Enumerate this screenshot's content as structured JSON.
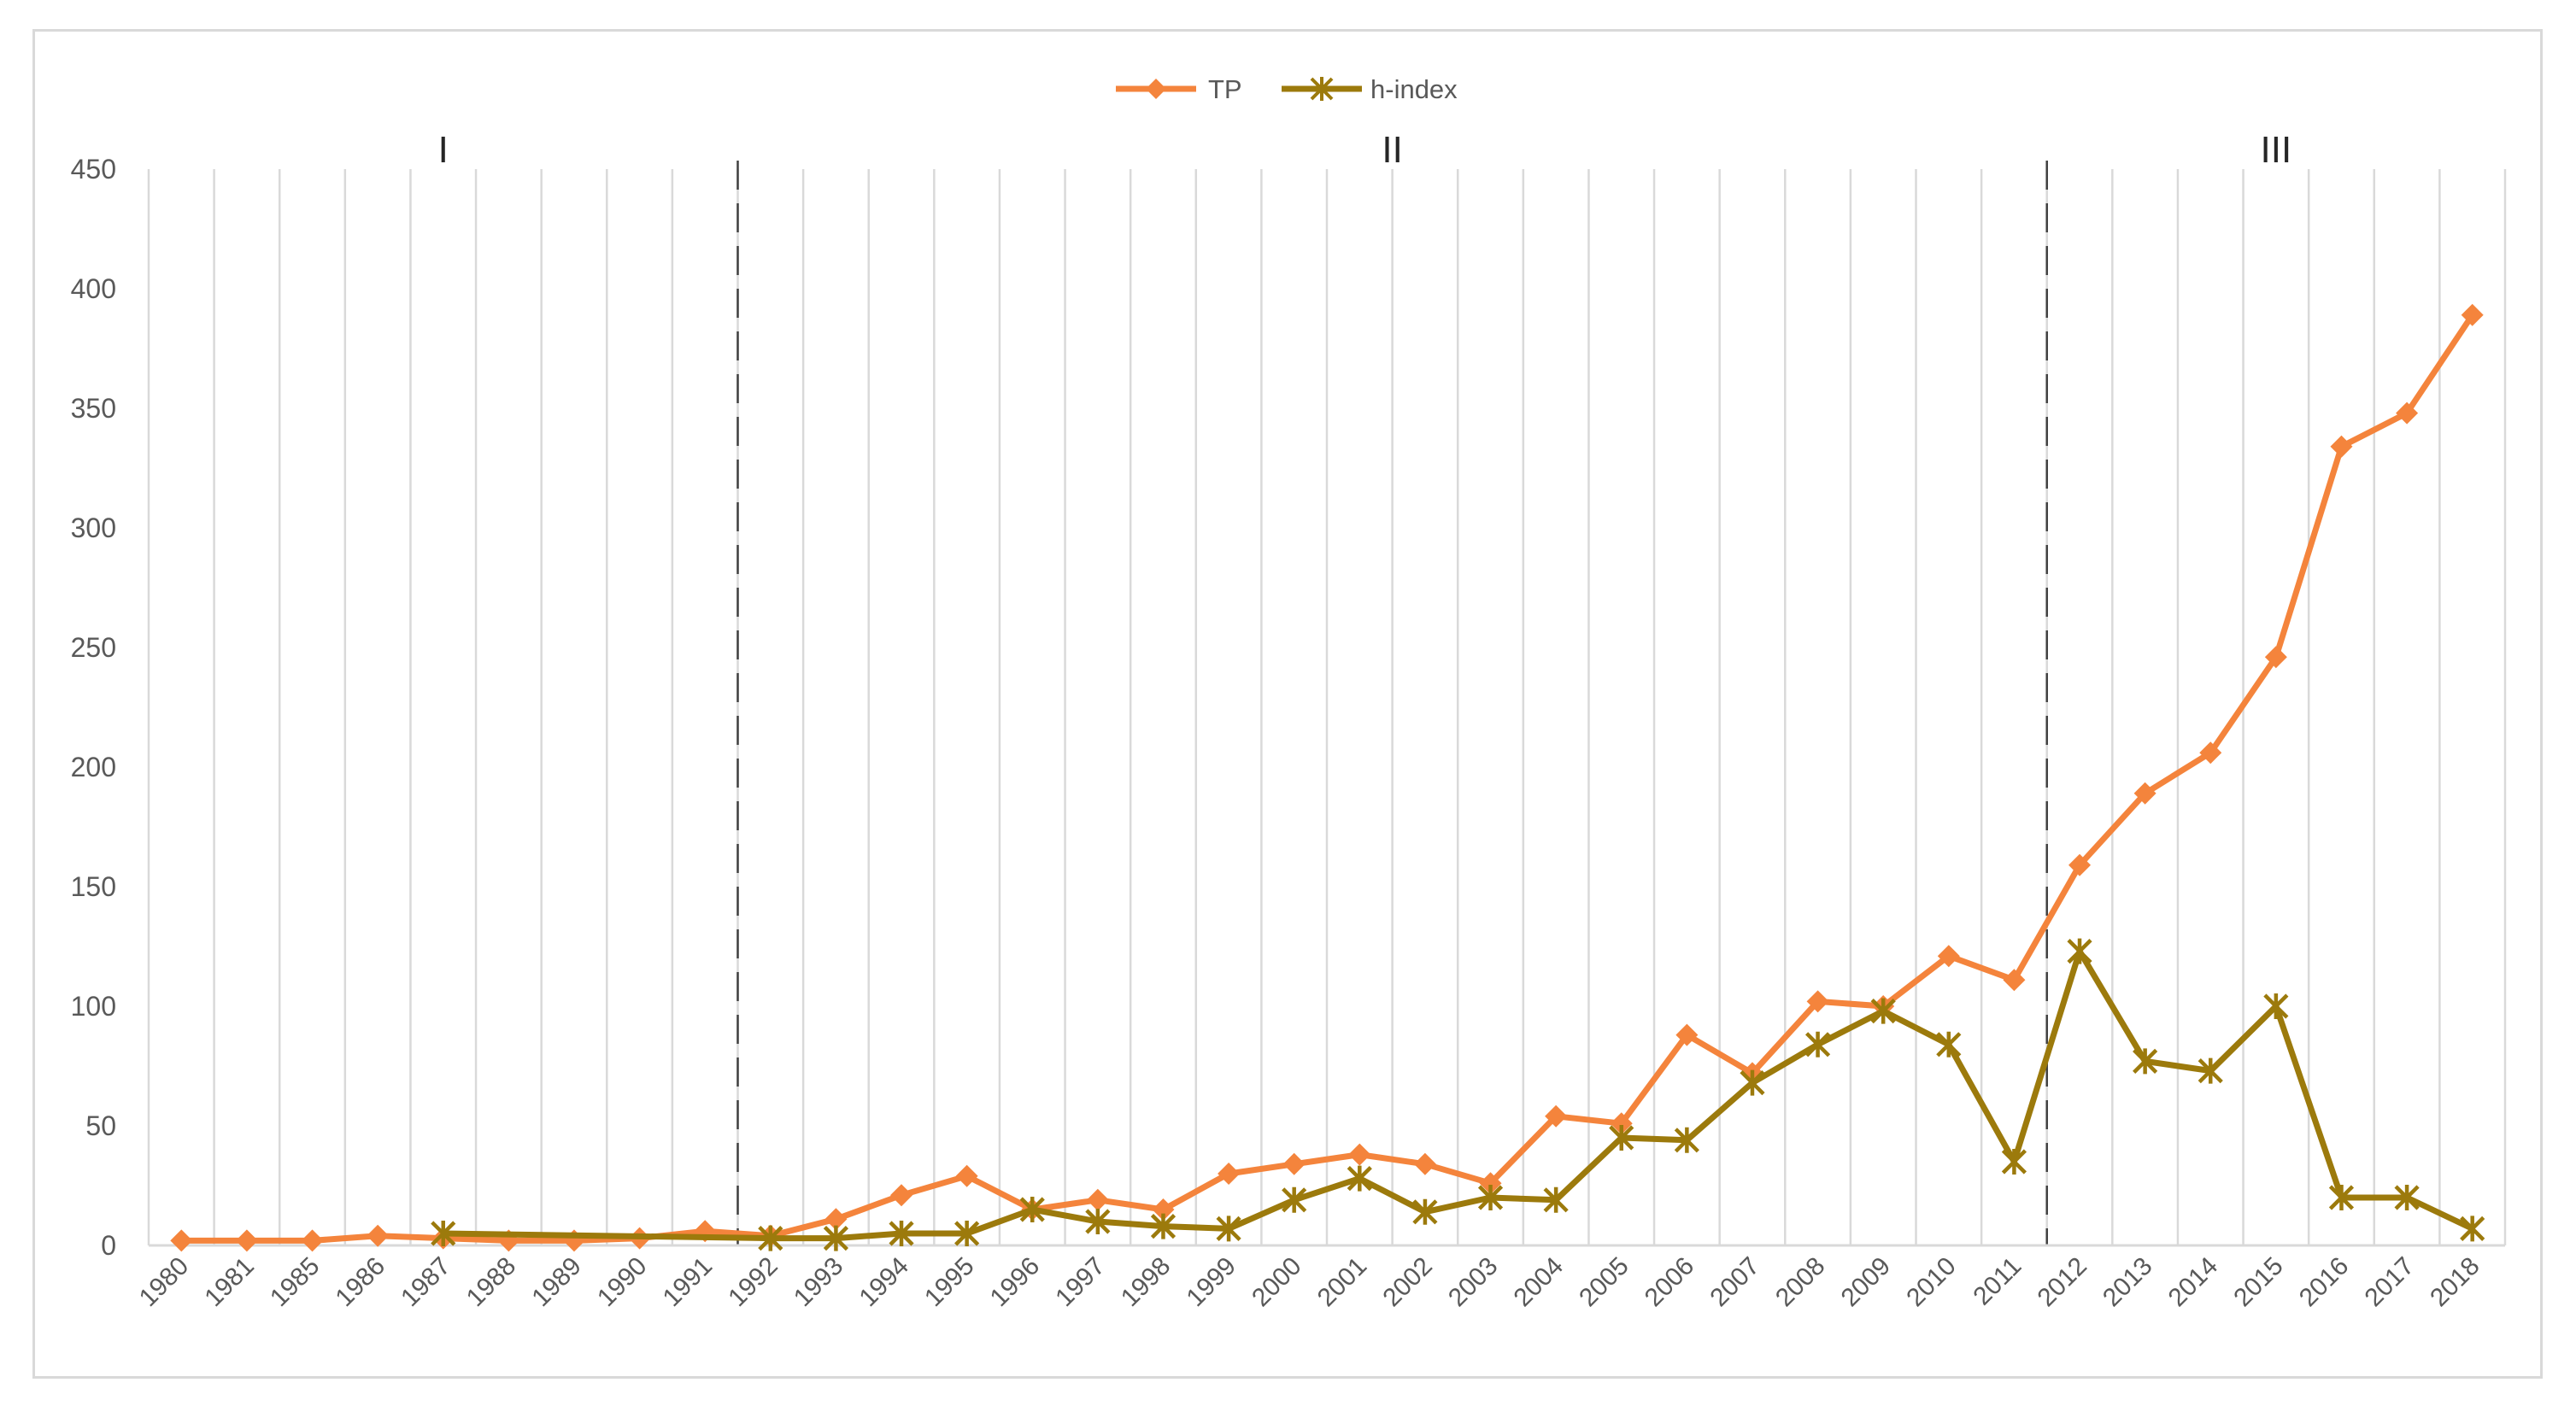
{
  "chart_data": {
    "type": "line",
    "title": "",
    "xlabel": "",
    "ylabel": "",
    "categories": [
      "1980",
      "1981",
      "1985",
      "1986",
      "1987",
      "1988",
      "1989",
      "1990",
      "1991",
      "1992",
      "1993",
      "1994",
      "1995",
      "1996",
      "1997",
      "1998",
      "1999",
      "2000",
      "2001",
      "2002",
      "2003",
      "2004",
      "2005",
      "2006",
      "2007",
      "2008",
      "2009",
      "2010",
      "2011",
      "2012",
      "2013",
      "2014",
      "2015",
      "2016",
      "2017",
      "2018"
    ],
    "ylim": [
      0,
      450
    ],
    "yticks": [
      "0",
      "50",
      "100",
      "150",
      "200",
      "250",
      "300",
      "350",
      "400",
      "450"
    ],
    "grid": "vertical",
    "legend_position": "top-center",
    "series": [
      {
        "name": "TP",
        "color": "#f4843c",
        "marker": "diamond",
        "values": [
          2,
          2,
          2,
          4,
          3,
          2,
          2,
          3,
          6,
          4,
          11,
          21,
          29,
          15,
          19,
          15,
          30,
          34,
          38,
          34,
          26,
          54,
          51,
          88,
          72,
          102,
          100,
          121,
          111,
          159,
          189,
          206,
          246,
          334,
          348,
          389
        ]
      },
      {
        "name": "h-index",
        "color": "#9c7a0c",
        "marker": "star",
        "values": [
          null,
          null,
          null,
          null,
          5,
          null,
          null,
          null,
          null,
          3,
          3,
          5,
          5,
          15,
          10,
          8,
          7,
          19,
          28,
          14,
          20,
          19,
          45,
          44,
          68,
          84,
          98,
          84,
          35,
          123,
          77,
          73,
          100,
          20,
          20,
          7
        ]
      }
    ],
    "phases": [
      {
        "label": "I"
      },
      {
        "label": "II"
      },
      {
        "label": "III"
      }
    ],
    "phase_dividers_after": [
      "1991",
      "2011"
    ]
  }
}
